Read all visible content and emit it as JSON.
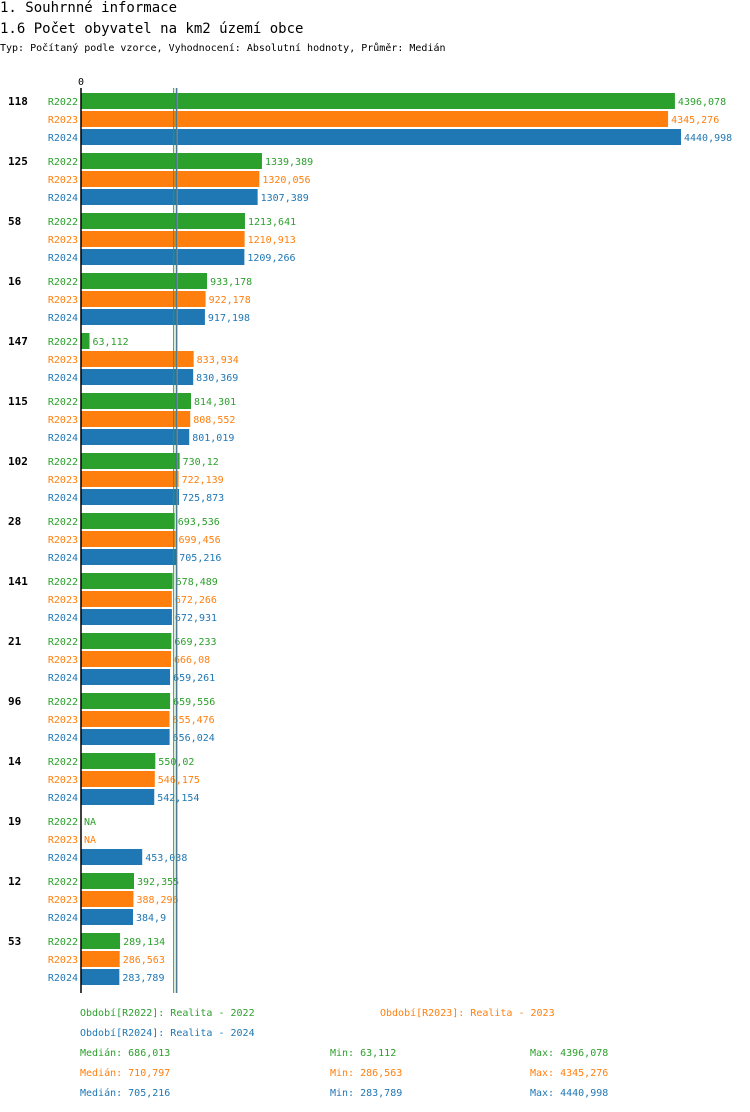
{
  "header": {
    "section": "1. Souhrnné informace",
    "title": "1.6 Počet obyvatel na km2 území obce",
    "subtitle": "Typ: Počítaný podle vzorce, Vyhodnocení: Absolutní hodnoty, Průměr: Medián"
  },
  "colors": {
    "R2022": "#2ca02c",
    "R2023": "#ff7f0e",
    "R2024": "#1f77b4"
  },
  "chart_data": {
    "type": "bar",
    "orientation": "horizontal",
    "title": "1.6 Počet obyvatel na km2 území obce",
    "axis_zero_label": "0",
    "xlim": [
      0,
      4440.998
    ],
    "categories": [
      "118",
      "125",
      "58",
      "16",
      "147",
      "115",
      "102",
      "28",
      "141",
      "21",
      "96",
      "14",
      "19",
      "12",
      "53"
    ],
    "series": [
      {
        "name": "R2022",
        "values": [
          4396.078,
          1339.389,
          1213.641,
          933.178,
          63.112,
          814.301,
          730.12,
          693.536,
          678.489,
          669.233,
          659.556,
          550.02,
          null,
          392.355,
          289.134
        ],
        "labels": [
          "4396,078",
          "1339,389",
          "1213,641",
          "933,178",
          "63,112",
          "814,301",
          "730,12",
          "693,536",
          "678,489",
          "669,233",
          "659,556",
          "550,02",
          "NA",
          "392,355",
          "289,134"
        ]
      },
      {
        "name": "R2023",
        "values": [
          4345.276,
          1320.056,
          1210.913,
          922.178,
          833.934,
          808.552,
          722.139,
          699.456,
          672.266,
          666.08,
          655.476,
          546.175,
          null,
          388.296,
          286.563
        ],
        "labels": [
          "4345,276",
          "1320,056",
          "1210,913",
          "922,178",
          "833,934",
          "808,552",
          "722,139",
          "699,456",
          "672,266",
          "666,08",
          "655,476",
          "546,175",
          "NA",
          "388,296",
          "286,563"
        ]
      },
      {
        "name": "R2024",
        "values": [
          4440.998,
          1307.389,
          1209.266,
          917.198,
          830.369,
          801.019,
          725.873,
          705.216,
          672.931,
          659.261,
          656.024,
          542.154,
          453.038,
          384.9,
          283.789
        ],
        "labels": [
          "4440,998",
          "1307,389",
          "1209,266",
          "917,198",
          "830,369",
          "801,019",
          "725,873",
          "705,216",
          "672,931",
          "659,261",
          "656,024",
          "542,154",
          "453,038",
          "384,9",
          "283,789"
        ]
      }
    ],
    "medians": [
      686.013,
      710.797,
      705.216
    ]
  },
  "legend": {
    "periods": [
      {
        "text": "Období[R2022]: Realita - 2022",
        "series": "R2022"
      },
      {
        "text": "Období[R2023]: Realita - 2023",
        "series": "R2023"
      },
      {
        "text": "Období[R2024]: Realita - 2024",
        "series": "R2024"
      }
    ],
    "stats": [
      {
        "series": "R2022",
        "median": "Medián: 686,013",
        "min": "Min: 63,112",
        "max": "Max: 4396,078"
      },
      {
        "series": "R2023",
        "median": "Medián: 710,797",
        "min": "Min: 286,563",
        "max": "Max: 4345,276"
      },
      {
        "series": "R2024",
        "median": "Medián: 705,216",
        "min": "Min: 283,789",
        "max": "Max: 4440,998"
      }
    ]
  }
}
